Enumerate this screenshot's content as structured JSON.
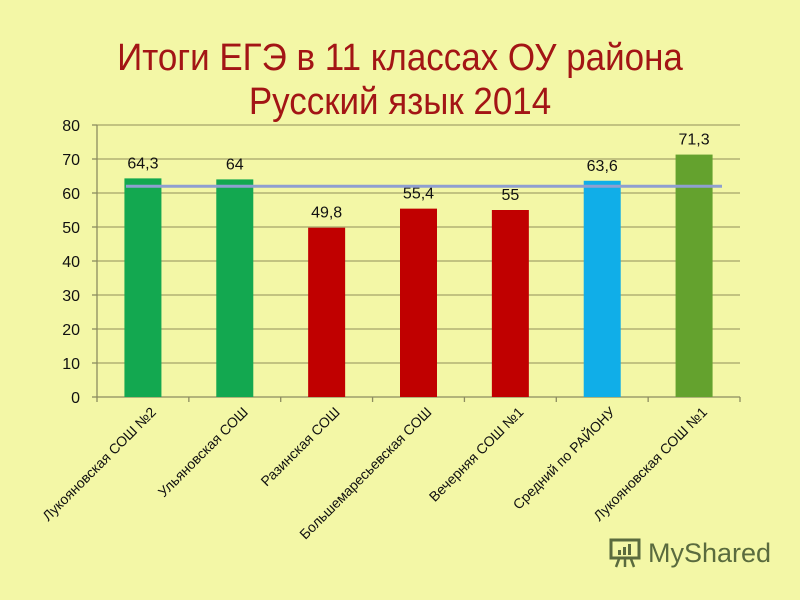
{
  "slide": {
    "title_line1": "Итоги ЕГЭ в 11 классах ОУ района",
    "title_line2": "Русский язык 2014",
    "background": "#f3f7a6",
    "title_color": "#a31515"
  },
  "watermark": {
    "text": "MyShared",
    "icon": "presentation-board-icon"
  },
  "chart_data": {
    "type": "bar",
    "title": "Итоги ЕГЭ в 11 классах ОУ района Русский язык 2014",
    "xlabel": "",
    "ylabel": "",
    "ylim": [
      0,
      80
    ],
    "yticks": [
      0,
      10,
      20,
      30,
      40,
      50,
      60,
      70,
      80
    ],
    "grid": true,
    "legend": "none",
    "categories": [
      "Лукояновская СОШ №2",
      "Ульяновская СОШ",
      "Разинская СОШ",
      "Большемаресьевская СОШ",
      "Вечерняя СОШ №1",
      "Средний по РАЙОНУ",
      "Лукояновская СОШ №1"
    ],
    "values": [
      64.3,
      64,
      49.8,
      55.4,
      55,
      63.6,
      71.3
    ],
    "value_labels": [
      "64,3",
      "64",
      "49,8",
      "55,4",
      "55",
      "63,6",
      "71,3"
    ],
    "bar_colors": [
      "#13a850",
      "#13a850",
      "#c00000",
      "#c00000",
      "#c00000",
      "#10aee8",
      "#64a22e"
    ],
    "reference_line": {
      "value": 62,
      "color": "#8f9fd0",
      "label": ""
    }
  }
}
